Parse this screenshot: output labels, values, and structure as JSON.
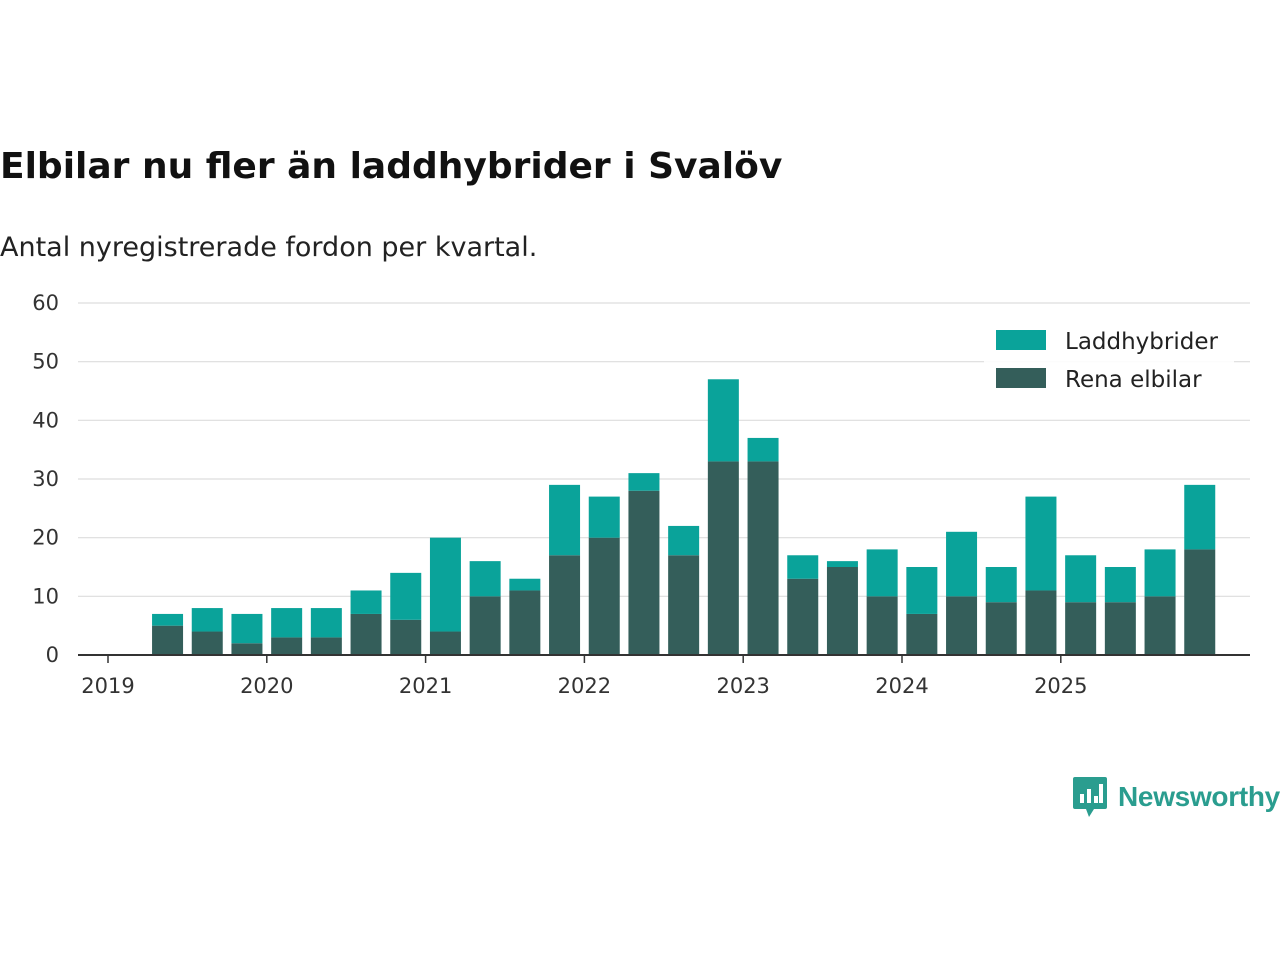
{
  "title": "Elbilar nu fler än laddhybrider i Svalöv",
  "subtitle": "Antal nyregistrerade fordon per kvartal.",
  "brand": {
    "name": "Newsworthy",
    "icon": "newsworthy-logo-icon",
    "color": "#2a9d8f"
  },
  "chart_data": {
    "type": "bar",
    "stacked": true,
    "title": "Elbilar nu fler än laddhybrider i Svalöv",
    "subtitle": "Antal nyregistrerade fordon per kvartal.",
    "xlabel": "",
    "ylabel": "",
    "ylim": [
      0,
      60
    ],
    "yticks": [
      0,
      10,
      20,
      30,
      40,
      50,
      60
    ],
    "grid": true,
    "legend_position": "top-right",
    "year_ticks": [
      "2019",
      "2020",
      "2021",
      "2022",
      "2023",
      "2024",
      "2025"
    ],
    "categories": [
      "2019 Q2",
      "2019 Q3",
      "2019 Q4",
      "2020 Q1",
      "2020 Q2",
      "2020 Q3",
      "2020 Q4",
      "2021 Q1",
      "2021 Q2",
      "2021 Q3",
      "2021 Q4",
      "2022 Q1",
      "2022 Q2",
      "2022 Q3",
      "2022 Q4",
      "2023 Q1",
      "2023 Q2",
      "2023 Q3",
      "2023 Q4",
      "2024 Q1",
      "2024 Q2",
      "2024 Q3",
      "2024 Q4",
      "2025 Q1",
      "2025 Q2",
      "2025 Q3",
      "2025 Q4"
    ],
    "series": [
      {
        "name": "Rena elbilar",
        "color": "#345e5a",
        "values": [
          5,
          4,
          2,
          3,
          3,
          7,
          6,
          4,
          10,
          11,
          17,
          20,
          28,
          17,
          33,
          33,
          13,
          15,
          10,
          7,
          10,
          9,
          11,
          9,
          9,
          10,
          18
        ]
      },
      {
        "name": "Laddhybrider",
        "color": "#0aa39a",
        "values": [
          2,
          4,
          5,
          5,
          5,
          4,
          8,
          16,
          6,
          2,
          12,
          7,
          3,
          5,
          14,
          4,
          4,
          1,
          8,
          8,
          11,
          6,
          16,
          8,
          6,
          8,
          11
        ]
      }
    ]
  }
}
